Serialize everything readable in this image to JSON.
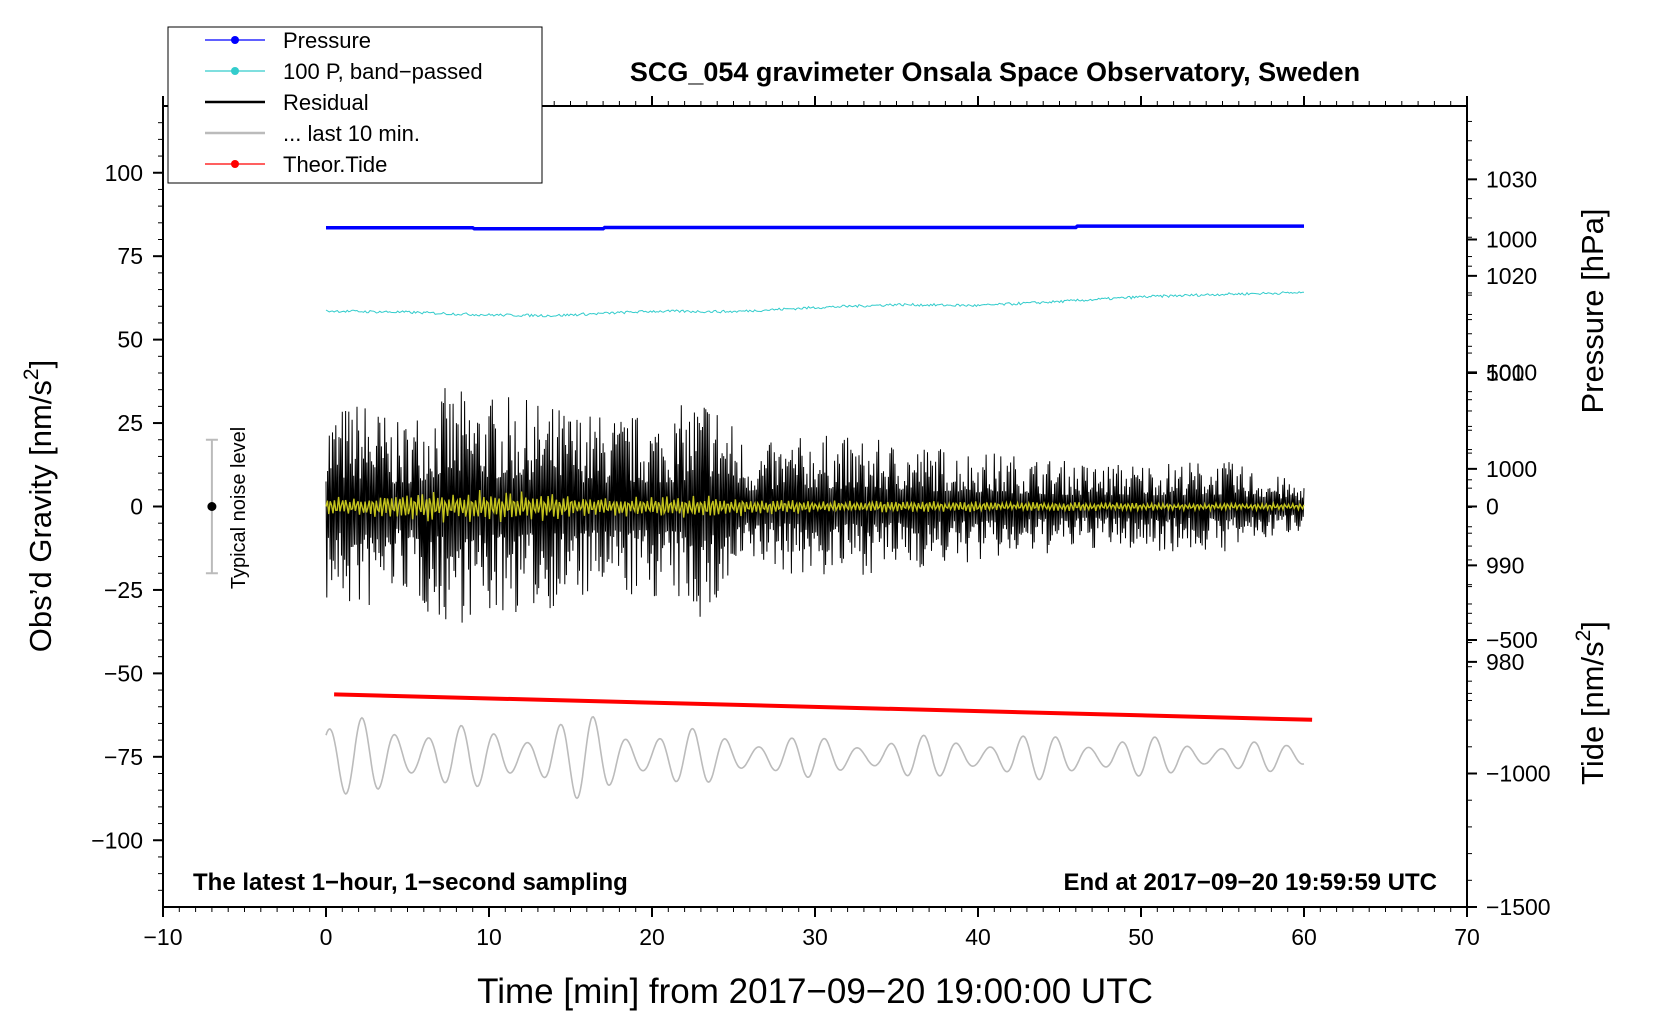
{
  "chart_data": {
    "type": "line",
    "title": "SCG_054 gravimeter Onsala Space Observatory, Sweden",
    "xlabel": "Time [min] from 2017−09−20 19:00:00 UTC",
    "ylabel_left": "Obs’d Gravity [nm/s²]",
    "ylabel_right_top": "Pressure [hPa]",
    "ylabel_right_bottom": "Tide [nm/s²]",
    "footnote_left": "The latest 1−hour, 1−second sampling",
    "footnote_right": "End at 2017−09−20 19:59:59 UTC",
    "noise_label": "Typical noise level",
    "noise_level": {
      "x": -7,
      "center": 0,
      "half_range": 20
    },
    "xlim": [
      -10,
      70
    ],
    "ylim": [
      -120,
      120
    ],
    "pressure_lim": [
      954.6,
      1037.6
    ],
    "tide_lim": [
      -1500,
      1500
    ],
    "x_ticks": [
      -10,
      0,
      10,
      20,
      30,
      40,
      50,
      60,
      70
    ],
    "x_tick_labels": [
      "−10",
      "0",
      "10",
      "20",
      "30",
      "40",
      "50",
      "60",
      "70"
    ],
    "y_ticks": [
      100,
      75,
      50,
      25,
      0,
      -25,
      -50,
      -75,
      -100
    ],
    "y_tick_labels": [
      "100",
      "75",
      "50",
      "25",
      "0",
      "−25",
      "−50",
      "−75",
      "−100"
    ],
    "pressure_ticks": [
      1030,
      1020,
      1010,
      1000,
      990,
      980
    ],
    "pressure_tick_labels": [
      "1030",
      "1020",
      "1010",
      "1000",
      "990",
      "980"
    ],
    "tide_ticks": [
      1000,
      500,
      0,
      -500,
      -1000,
      -1500
    ],
    "tide_tick_labels": [
      "1000",
      "500",
      "0",
      "−500",
      "−1000",
      "−1500"
    ],
    "legend": [
      {
        "name": "Pressure",
        "color": "#0000ff",
        "marker": true
      },
      {
        "name": "100 P, band−passed",
        "color": "#33cccc",
        "marker": true
      },
      {
        "name": "Residual",
        "color": "#000000",
        "marker": false
      },
      {
        "name": "... last 10 min.",
        "color": "#bbbbbb",
        "marker": false
      },
      {
        "name": "Theor.Tide",
        "color": "#ff0000",
        "marker": true
      }
    ],
    "series": [
      {
        "name": "Pressure",
        "axis": "gravity",
        "color": "#0000ff",
        "x": [
          0,
          9,
          9.1,
          17,
          17.1,
          46,
          46.1,
          60
        ],
        "y": [
          83.5,
          83.5,
          83.2,
          83.2,
          83.6,
          83.6,
          84.0,
          84.0
        ]
      },
      {
        "name": "100 P, band−passed",
        "axis": "gravity",
        "color": "#33cccc",
        "x": [
          0,
          5,
          10,
          14,
          20,
          25,
          30,
          35,
          40,
          45,
          50,
          55,
          60
        ],
        "y": [
          58.6,
          58.2,
          57.4,
          57.2,
          58.5,
          58.4,
          59.6,
          60.5,
          60.2,
          61.4,
          62.8,
          63.6,
          64.1
        ]
      },
      {
        "name": "Residual",
        "axis": "gravity",
        "color": "#000000",
        "x_range": [
          0,
          60
        ],
        "envelope": [
          [
            0,
            30
          ],
          [
            2.5,
            33
          ],
          [
            4.5,
            25
          ],
          [
            7,
            36
          ],
          [
            12.5,
            32
          ],
          [
            17,
            28
          ],
          [
            21,
            28
          ],
          [
            23.5,
            36
          ],
          [
            26,
            18
          ],
          [
            30,
            22
          ],
          [
            40,
            17
          ],
          [
            47,
            13
          ],
          [
            55,
            14
          ],
          [
            60,
            7
          ]
        ]
      },
      {
        "name": "Residual (filtered)",
        "axis": "gravity",
        "color": "#d8d820",
        "x_range": [
          0,
          60
        ],
        "envelope": [
          [
            0,
            3
          ],
          [
            4,
            4
          ],
          [
            7,
            5
          ],
          [
            12,
            5
          ],
          [
            16,
            3
          ],
          [
            21,
            4
          ],
          [
            30,
            2
          ],
          [
            60,
            1
          ]
        ]
      },
      {
        "name": "... last 10 min.",
        "axis": "gravity",
        "color": "#bbbbbb",
        "x_range": [
          0,
          60
        ],
        "center": -75,
        "envelope": [
          [
            0,
            11
          ],
          [
            4.5,
            13
          ],
          [
            7,
            10
          ],
          [
            10,
            9
          ],
          [
            16,
            13
          ],
          [
            21,
            9
          ],
          [
            30,
            6
          ],
          [
            46,
            7
          ],
          [
            60,
            4
          ]
        ]
      },
      {
        "name": "Theor.Tide",
        "axis": "gravity",
        "color": "#ff0000",
        "x": [
          0.5,
          60.5
        ],
        "y": [
          -56.3,
          -63.9
        ]
      }
    ]
  }
}
